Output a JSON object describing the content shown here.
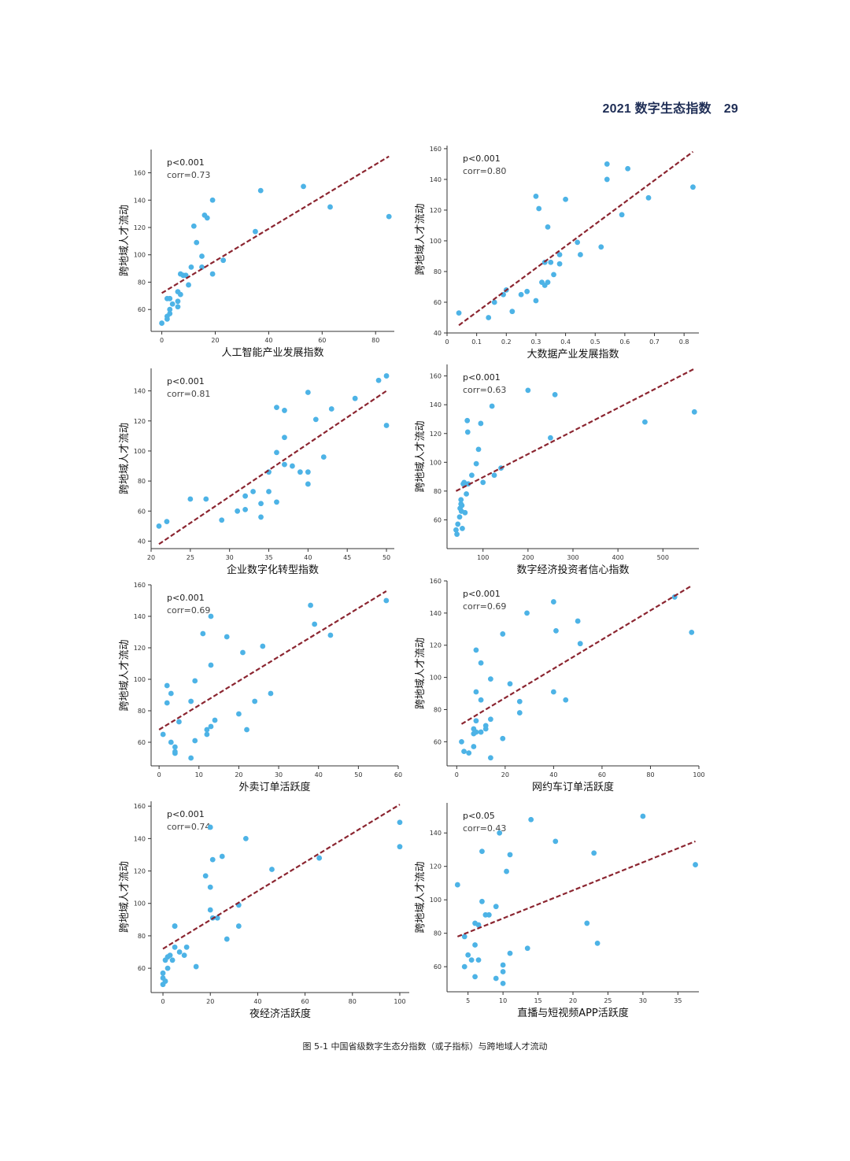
{
  "header": {
    "title": "2021 数字生态指数",
    "page_number": "29"
  },
  "caption": "图 5-1 中国省级数字生态分指数（或子指标）与跨地域人才流动",
  "colors": {
    "point": "#4db3e6",
    "fit_line": "#8b2530",
    "axis": "#333333",
    "header": "#1e2d55"
  },
  "chart_data": [
    {
      "type": "scatter",
      "xlabel": "人工智能产业发展指数",
      "ylabel": "跨地域人才流动",
      "annotation_p": "p<0.001",
      "annotation_corr": "corr=0.73",
      "xlim": [
        -4,
        87
      ],
      "ylim": [
        44,
        177
      ],
      "xticks": [
        0,
        20,
        40,
        60,
        80
      ],
      "yticks": [
        60,
        80,
        100,
        120,
        140,
        160
      ],
      "fit": [
        [
          0,
          72
        ],
        [
          85,
          172
        ]
      ],
      "points": [
        [
          0,
          50
        ],
        [
          2,
          53
        ],
        [
          2,
          55
        ],
        [
          3,
          57
        ],
        [
          3,
          60
        ],
        [
          4,
          64
        ],
        [
          2,
          68
        ],
        [
          3,
          68
        ],
        [
          6,
          62
        ],
        [
          6,
          66
        ],
        [
          6,
          73
        ],
        [
          7,
          71
        ],
        [
          7,
          86
        ],
        [
          8,
          85
        ],
        [
          9,
          85
        ],
        [
          10,
          78
        ],
        [
          11,
          91
        ],
        [
          12,
          121
        ],
        [
          13,
          109
        ],
        [
          15,
          99
        ],
        [
          15,
          91
        ],
        [
          16,
          129
        ],
        [
          17,
          127
        ],
        [
          19,
          140
        ],
        [
          19,
          86
        ],
        [
          23,
          96
        ],
        [
          35,
          117
        ],
        [
          37,
          147
        ],
        [
          53,
          150
        ],
        [
          63,
          135
        ],
        [
          85,
          128
        ]
      ]
    },
    {
      "type": "scatter",
      "xlabel": "大数据产业发展指数",
      "ylabel": "跨地域人才流动",
      "annotation_p": "p<0.001",
      "annotation_corr": "corr=0.80",
      "xlim": [
        0,
        0.85
      ],
      "ylim": [
        40,
        162
      ],
      "xticks": [
        0.0,
        0.1,
        0.2,
        0.3,
        0.4,
        0.5,
        0.6,
        0.7,
        0.8
      ],
      "yticks": [
        40,
        60,
        80,
        100,
        120,
        140,
        160
      ],
      "fit": [
        [
          0.04,
          45
        ],
        [
          0.83,
          158
        ]
      ],
      "points": [
        [
          0.04,
          53
        ],
        [
          0.14,
          50
        ],
        [
          0.16,
          60
        ],
        [
          0.19,
          65
        ],
        [
          0.2,
          68
        ],
        [
          0.22,
          54
        ],
        [
          0.25,
          65
        ],
        [
          0.27,
          67
        ],
        [
          0.3,
          61
        ],
        [
          0.32,
          73
        ],
        [
          0.33,
          71
        ],
        [
          0.34,
          73
        ],
        [
          0.33,
          86
        ],
        [
          0.35,
          86
        ],
        [
          0.36,
          78
        ],
        [
          0.38,
          85
        ],
        [
          0.38,
          91
        ],
        [
          0.3,
          129
        ],
        [
          0.31,
          121
        ],
        [
          0.34,
          109
        ],
        [
          0.4,
          127
        ],
        [
          0.44,
          99
        ],
        [
          0.45,
          91
        ],
        [
          0.52,
          96
        ],
        [
          0.54,
          140
        ],
        [
          0.54,
          150
        ],
        [
          0.59,
          117
        ],
        [
          0.61,
          147
        ],
        [
          0.68,
          128
        ],
        [
          0.83,
          135
        ]
      ]
    },
    {
      "type": "scatter",
      "xlabel": "企业数字化转型指数",
      "ylabel": "跨地域人才流动",
      "annotation_p": "p<0.001",
      "annotation_corr": "corr=0.81",
      "xlim": [
        20,
        51
      ],
      "ylim": [
        35,
        155
      ],
      "xticks": [
        20,
        25,
        30,
        35,
        40,
        45,
        50
      ],
      "yticks": [
        40,
        60,
        80,
        100,
        120,
        140
      ],
      "fit": [
        [
          21,
          38
        ],
        [
          50,
          140
        ]
      ],
      "points": [
        [
          21,
          50
        ],
        [
          22,
          53
        ],
        [
          25,
          68
        ],
        [
          27,
          68
        ],
        [
          29,
          54
        ],
        [
          31,
          60
        ],
        [
          32,
          61
        ],
        [
          32,
          70
        ],
        [
          33,
          73
        ],
        [
          34,
          56
        ],
        [
          34,
          65
        ],
        [
          35,
          73
        ],
        [
          35,
          86
        ],
        [
          36,
          66
        ],
        [
          36,
          99
        ],
        [
          36,
          129
        ],
        [
          37,
          109
        ],
        [
          37,
          127
        ],
        [
          37,
          91
        ],
        [
          38,
          90
        ],
        [
          39,
          86
        ],
        [
          40,
          86
        ],
        [
          40,
          78
        ],
        [
          40,
          139
        ],
        [
          41,
          121
        ],
        [
          42,
          96
        ],
        [
          43,
          128
        ],
        [
          46,
          135
        ],
        [
          49,
          147
        ],
        [
          50,
          150
        ],
        [
          50,
          117
        ]
      ]
    },
    {
      "type": "scatter",
      "xlabel": "数字经济投资者信心指数",
      "ylabel": "跨地域人才流动",
      "annotation_p": "p<0.001",
      "annotation_corr": "corr=0.63",
      "xlim": [
        20,
        580
      ],
      "ylim": [
        40,
        168
      ],
      "xticks": [
        100,
        200,
        300,
        400,
        500
      ],
      "yticks": [
        60,
        80,
        100,
        120,
        140,
        160
      ],
      "fit": [
        [
          40,
          80
        ],
        [
          570,
          165
        ]
      ],
      "points": [
        [
          40,
          53
        ],
        [
          42,
          50
        ],
        [
          44,
          57
        ],
        [
          48,
          62
        ],
        [
          49,
          68
        ],
        [
          51,
          71
        ],
        [
          51,
          74
        ],
        [
          52,
          66
        ],
        [
          53,
          70
        ],
        [
          54,
          54
        ],
        [
          56,
          85
        ],
        [
          58,
          86
        ],
        [
          60,
          65
        ],
        [
          63,
          78
        ],
        [
          65,
          129
        ],
        [
          66,
          121
        ],
        [
          67,
          85
        ],
        [
          75,
          91
        ],
        [
          85,
          99
        ],
        [
          90,
          109
        ],
        [
          95,
          127
        ],
        [
          100,
          86
        ],
        [
          120,
          139
        ],
        [
          125,
          91
        ],
        [
          140,
          96
        ],
        [
          200,
          150
        ],
        [
          250,
          117
        ],
        [
          260,
          147
        ],
        [
          460,
          128
        ],
        [
          570,
          135
        ]
      ]
    },
    {
      "type": "scatter",
      "xlabel": "外卖订单活跃度",
      "ylabel": "跨地域人才流动",
      "annotation_p": "p<0.001",
      "annotation_corr": "corr=0.69",
      "xlim": [
        -2,
        60
      ],
      "ylim": [
        45,
        160
      ],
      "xticks": [
        0,
        10,
        20,
        30,
        40,
        50,
        60
      ],
      "yticks": [
        60,
        80,
        100,
        120,
        140,
        160
      ],
      "fit": [
        [
          0,
          68
        ],
        [
          57,
          156
        ]
      ],
      "points": [
        [
          1,
          65
        ],
        [
          2,
          96
        ],
        [
          2,
          85
        ],
        [
          3,
          91
        ],
        [
          3,
          60
        ],
        [
          4,
          54
        ],
        [
          4,
          53
        ],
        [
          4,
          57
        ],
        [
          5,
          73
        ],
        [
          8,
          50
        ],
        [
          8,
          86
        ],
        [
          9,
          61
        ],
        [
          9,
          99
        ],
        [
          11,
          129
        ],
        [
          12,
          68
        ],
        [
          12,
          65
        ],
        [
          13,
          140
        ],
        [
          13,
          109
        ],
        [
          13,
          70
        ],
        [
          14,
          74
        ],
        [
          17,
          127
        ],
        [
          20,
          78
        ],
        [
          21,
          117
        ],
        [
          22,
          68
        ],
        [
          24,
          86
        ],
        [
          26,
          121
        ],
        [
          28,
          91
        ],
        [
          38,
          147
        ],
        [
          39,
          135
        ],
        [
          43,
          128
        ],
        [
          57,
          150
        ]
      ]
    },
    {
      "type": "scatter",
      "xlabel": "网约车订单活跃度",
      "ylabel": "跨地域人才流动",
      "annotation_p": "p<0.001",
      "annotation_corr": "corr=0.69",
      "xlim": [
        -4,
        100
      ],
      "ylim": [
        45,
        160
      ],
      "xticks": [
        0,
        20,
        40,
        60,
        80,
        100
      ],
      "yticks": [
        60,
        80,
        100,
        120,
        140,
        160
      ],
      "fit": [
        [
          2,
          71
        ],
        [
          97,
          157
        ]
      ],
      "points": [
        [
          2,
          60
        ],
        [
          3,
          54
        ],
        [
          5,
          53
        ],
        [
          7,
          68
        ],
        [
          7,
          65
        ],
        [
          7,
          57
        ],
        [
          8,
          117
        ],
        [
          8,
          73
        ],
        [
          8,
          91
        ],
        [
          8,
          66
        ],
        [
          10,
          109
        ],
        [
          10,
          86
        ],
        [
          10,
          66
        ],
        [
          12,
          68
        ],
        [
          12,
          70
        ],
        [
          14,
          74
        ],
        [
          14,
          99
        ],
        [
          14,
          50
        ],
        [
          19,
          62
        ],
        [
          19,
          127
        ],
        [
          22,
          96
        ],
        [
          26,
          85
        ],
        [
          26,
          78
        ],
        [
          29,
          140
        ],
        [
          40,
          147
        ],
        [
          40,
          91
        ],
        [
          41,
          129
        ],
        [
          45,
          86
        ],
        [
          50,
          135
        ],
        [
          51,
          121
        ],
        [
          90,
          150
        ],
        [
          97,
          128
        ]
      ]
    },
    {
      "type": "scatter",
      "xlabel": "夜经济活跃度",
      "ylabel": "跨地域人才流动",
      "annotation_p": "p<0.001",
      "annotation_corr": "corr=0.74",
      "xlim": [
        -5,
        104
      ],
      "ylim": [
        45,
        163
      ],
      "xticks": [
        0,
        20,
        40,
        60,
        80,
        100
      ],
      "yticks": [
        60,
        80,
        100,
        120,
        140,
        160
      ],
      "fit": [
        [
          0,
          72
        ],
        [
          100,
          161
        ]
      ],
      "points": [
        [
          0,
          50
        ],
        [
          0,
          54
        ],
        [
          0,
          57
        ],
        [
          1,
          52
        ],
        [
          1,
          65
        ],
        [
          2,
          60
        ],
        [
          2,
          67
        ],
        [
          3,
          68
        ],
        [
          4,
          65
        ],
        [
          5,
          86
        ],
        [
          5,
          86
        ],
        [
          5,
          73
        ],
        [
          7,
          70
        ],
        [
          9,
          68
        ],
        [
          10,
          73
        ],
        [
          14,
          61
        ],
        [
          18,
          117
        ],
        [
          20,
          110
        ],
        [
          20,
          96
        ],
        [
          20,
          147
        ],
        [
          21,
          91
        ],
        [
          21,
          127
        ],
        [
          23,
          91
        ],
        [
          25,
          129
        ],
        [
          27,
          78
        ],
        [
          32,
          86
        ],
        [
          32,
          99
        ],
        [
          35,
          140
        ],
        [
          46,
          121
        ],
        [
          66,
          128
        ],
        [
          100,
          150
        ],
        [
          100,
          135
        ]
      ]
    },
    {
      "type": "scatter",
      "xlabel": "直播与短视频APP活跃度",
      "ylabel": "跨地域人才流动",
      "annotation_p": "p<0.05",
      "annotation_corr": "corr=0.43",
      "xlim": [
        2,
        38
      ],
      "ylim": [
        45,
        158
      ],
      "xticks": [
        5,
        10,
        15,
        20,
        25,
        30,
        35
      ],
      "yticks": [
        60,
        80,
        100,
        120,
        140
      ],
      "fit": [
        [
          3.5,
          78
        ],
        [
          37.5,
          135
        ]
      ],
      "points": [
        [
          3.5,
          109
        ],
        [
          4.5,
          60
        ],
        [
          4.5,
          78
        ],
        [
          5,
          67
        ],
        [
          5.5,
          64
        ],
        [
          6,
          73
        ],
        [
          6,
          54
        ],
        [
          6,
          86
        ],
        [
          6.5,
          85
        ],
        [
          6.5,
          64
        ],
        [
          7,
          129
        ],
        [
          7,
          99
        ],
        [
          7.5,
          91
        ],
        [
          8,
          91
        ],
        [
          9,
          96
        ],
        [
          9,
          53
        ],
        [
          9.5,
          140
        ],
        [
          10,
          57
        ],
        [
          10,
          61
        ],
        [
          10,
          50
        ],
        [
          10.5,
          117
        ],
        [
          11,
          127
        ],
        [
          11,
          68
        ],
        [
          13.5,
          71
        ],
        [
          14,
          148
        ],
        [
          17.5,
          135
        ],
        [
          22,
          86
        ],
        [
          23,
          128
        ],
        [
          23.5,
          74
        ],
        [
          30,
          150
        ],
        [
          37.5,
          121
        ]
      ]
    }
  ]
}
